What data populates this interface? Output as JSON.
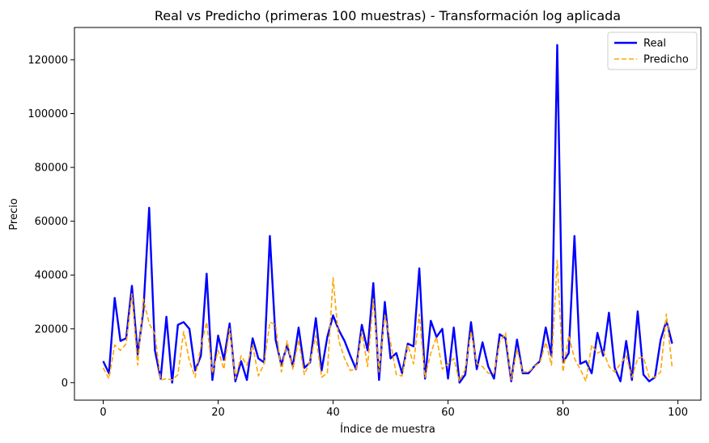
{
  "chart_data": {
    "type": "line",
    "title": "Real vs Predicho (primeras 100 muestras) - Transformación log aplicada",
    "xlabel": "Índice de muestra",
    "ylabel": "Precio",
    "xlim": [
      -5,
      104
    ],
    "ylim": [
      -6500,
      132000
    ],
    "xticks": [
      0,
      20,
      40,
      60,
      80,
      100
    ],
    "yticks": [
      0,
      20000,
      40000,
      60000,
      80000,
      100000,
      120000
    ],
    "grid": false,
    "legend_position": "top-right",
    "series": [
      {
        "name": "Real",
        "color": "#0000ff",
        "style": "solid",
        "x": [
          0,
          1,
          2,
          3,
          4,
          5,
          6,
          7,
          8,
          9,
          10,
          11,
          12,
          13,
          14,
          15,
          16,
          17,
          18,
          19,
          20,
          21,
          22,
          23,
          24,
          25,
          26,
          27,
          28,
          29,
          30,
          31,
          32,
          33,
          34,
          35,
          36,
          37,
          38,
          39,
          40,
          41,
          42,
          43,
          44,
          45,
          46,
          47,
          48,
          49,
          50,
          51,
          52,
          53,
          54,
          55,
          56,
          57,
          58,
          59,
          60,
          61,
          62,
          63,
          64,
          65,
          66,
          67,
          68,
          69,
          70,
          71,
          72,
          73,
          74,
          75,
          76,
          77,
          78,
          79,
          80,
          81,
          82,
          83,
          84,
          85,
          86,
          87,
          88,
          89,
          90,
          91,
          92,
          93,
          94,
          95,
          96,
          97,
          98,
          99
        ],
        "values": [
          8000,
          3500,
          31500,
          15500,
          16500,
          36000,
          10500,
          27000,
          65000,
          12000,
          1500,
          24500,
          0,
          21500,
          22500,
          20000,
          4500,
          10000,
          40500,
          1000,
          17500,
          8500,
          22000,
          500,
          8000,
          1000,
          16500,
          9000,
          7500,
          54500,
          16000,
          6500,
          14000,
          6000,
          20500,
          5500,
          7500,
          24000,
          4500,
          17000,
          25000,
          19500,
          15500,
          10000,
          5000,
          21500,
          12000,
          37000,
          1000,
          30000,
          9000,
          11000,
          3500,
          14500,
          13500,
          42500,
          1500,
          23000,
          17000,
          20000,
          1500,
          20500,
          0,
          3000,
          22500,
          5000,
          15000,
          6000,
          1500,
          18000,
          16500,
          500,
          16000,
          3500,
          3500,
          6000,
          8000,
          20500,
          10000,
          125500,
          7500,
          11000,
          54500,
          7000,
          8000,
          3500,
          18500,
          10000,
          26000,
          5500,
          500,
          15500,
          1000,
          26500,
          3000,
          500,
          2000,
          16000,
          23000,
          14500
        ]
      },
      {
        "name": "Predicho",
        "color": "#ffa500",
        "style": "dashed",
        "x": [
          0,
          1,
          2,
          3,
          4,
          5,
          6,
          7,
          8,
          9,
          10,
          11,
          12,
          13,
          14,
          15,
          16,
          17,
          18,
          19,
          20,
          21,
          22,
          23,
          24,
          25,
          26,
          27,
          28,
          29,
          30,
          31,
          32,
          33,
          34,
          35,
          36,
          37,
          38,
          39,
          40,
          41,
          42,
          43,
          44,
          45,
          46,
          47,
          48,
          49,
          50,
          51,
          52,
          53,
          54,
          55,
          56,
          57,
          58,
          59,
          60,
          61,
          62,
          63,
          64,
          65,
          66,
          67,
          68,
          69,
          70,
          71,
          72,
          73,
          74,
          75,
          76,
          77,
          78,
          79,
          80,
          81,
          82,
          83,
          84,
          85,
          86,
          87,
          88,
          89,
          90,
          91,
          92,
          93,
          94,
          95,
          96,
          97,
          98,
          99
        ],
        "values": [
          5500,
          1500,
          14000,
          12000,
          14500,
          33000,
          6500,
          31000,
          22000,
          18000,
          1000,
          1500,
          1000,
          3000,
          19000,
          8000,
          2000,
          13500,
          22500,
          3500,
          12000,
          5000,
          20000,
          1500,
          10000,
          6500,
          14000,
          2500,
          7000,
          22500,
          21500,
          4000,
          15500,
          5000,
          16000,
          3000,
          8000,
          17500,
          2000,
          3500,
          39000,
          15500,
          9000,
          4500,
          5000,
          19000,
          6000,
          31000,
          4000,
          25000,
          15000,
          3000,
          2500,
          14000,
          7000,
          25500,
          2000,
          11000,
          17000,
          5000,
          7000,
          9000,
          500,
          5000,
          19000,
          7000,
          6000,
          3500,
          3500,
          15000,
          18500,
          1000,
          12500,
          4000,
          4000,
          6000,
          7500,
          15000,
          6500,
          45500,
          4000,
          17500,
          9000,
          5000,
          500,
          14000,
          11000,
          12000,
          6000,
          4000,
          7000,
          10000,
          2000,
          9000,
          9500,
          2000,
          2000,
          4000,
          25500,
          5500
        ]
      }
    ]
  }
}
